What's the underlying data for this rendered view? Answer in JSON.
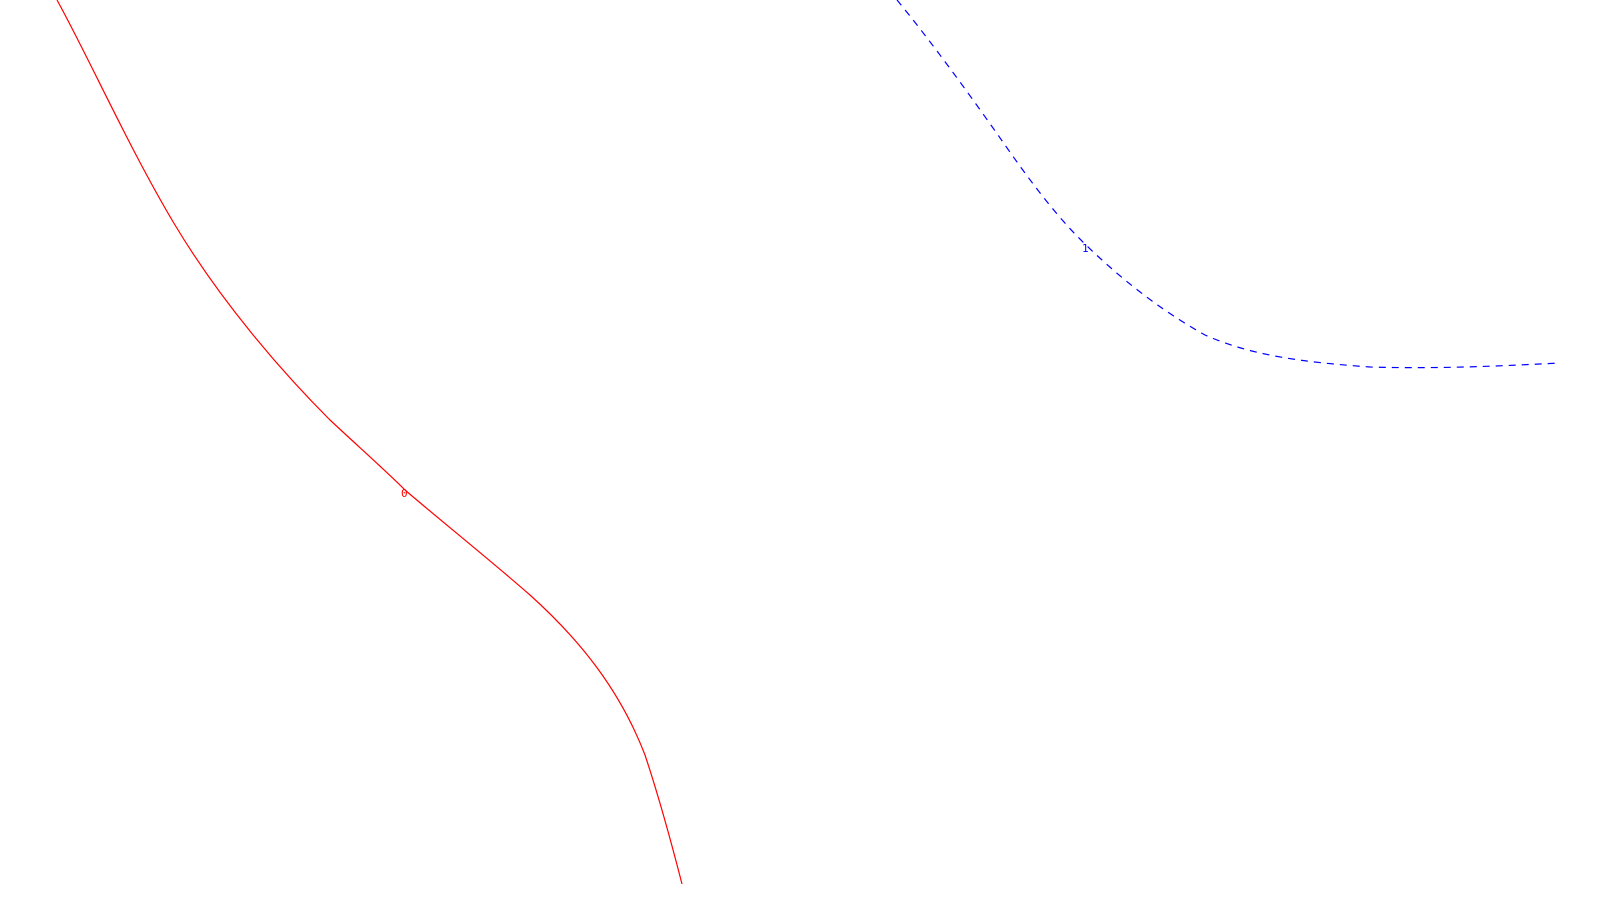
{
  "curves": [
    {
      "label": "0",
      "color": "#ff0000",
      "style": "solid"
    },
    {
      "label": "1",
      "color": "#0000ff",
      "style": "dashed"
    }
  ],
  "background": "#ffffff"
}
